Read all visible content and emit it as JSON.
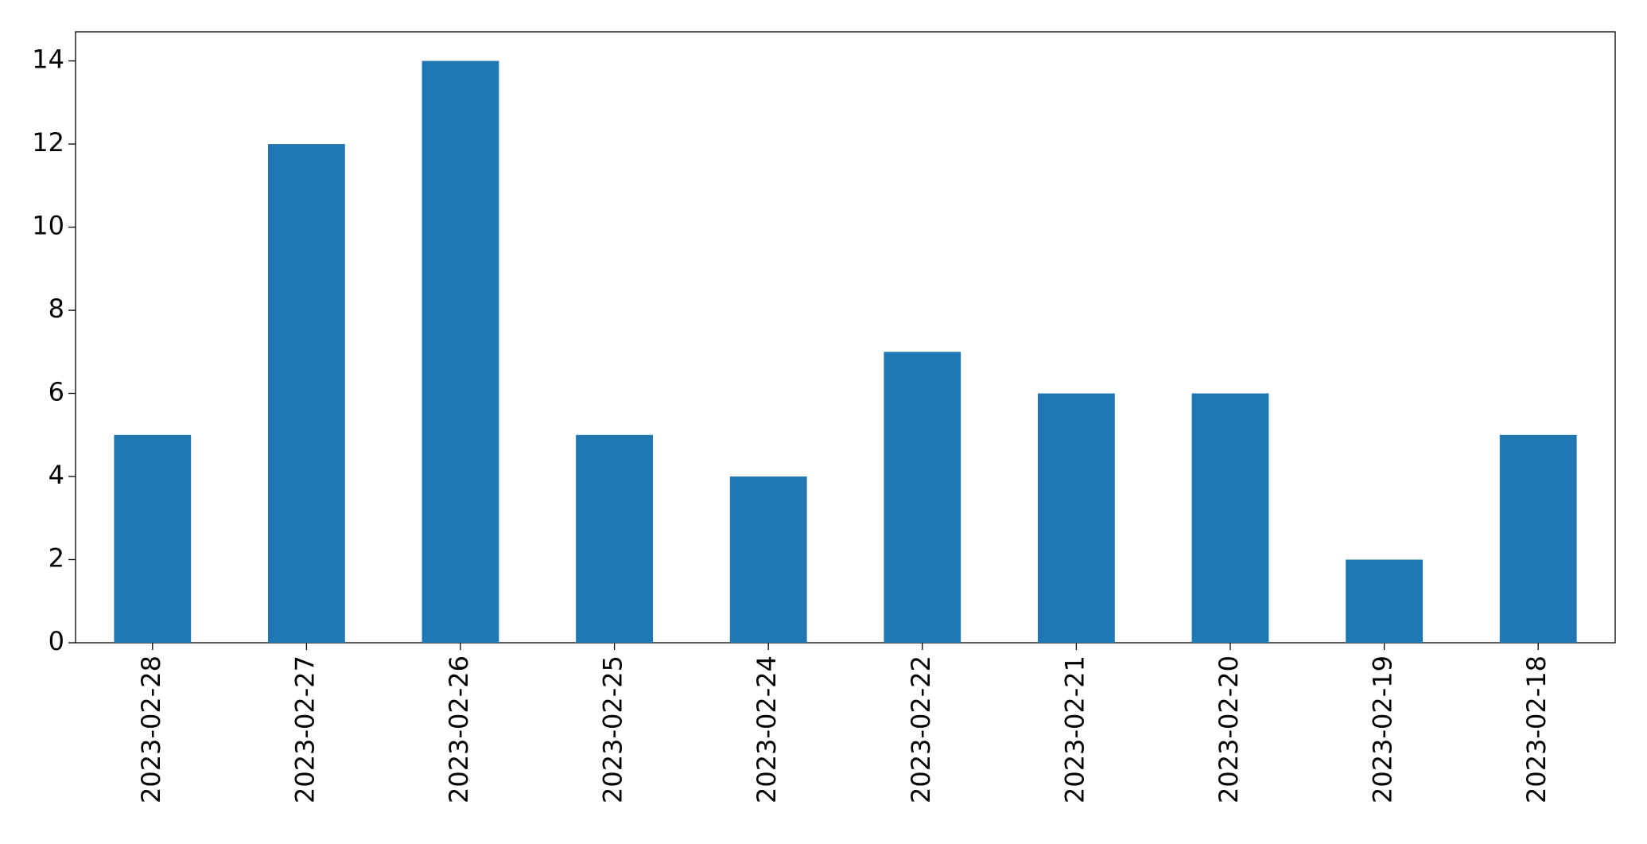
{
  "chart_data": {
    "type": "bar",
    "categories": [
      "2023-02-28",
      "2023-02-27",
      "2023-02-26",
      "2023-02-25",
      "2023-02-24",
      "2023-02-22",
      "2023-02-21",
      "2023-02-20",
      "2023-02-19",
      "2023-02-18"
    ],
    "values": [
      5,
      12,
      14,
      5,
      4,
      7,
      6,
      6,
      2,
      5
    ],
    "color": "#1f77b4",
    "ylim": [
      0,
      14.7
    ],
    "yticks": [
      0,
      2,
      4,
      6,
      8,
      10,
      12,
      14
    ],
    "grid": false
  }
}
